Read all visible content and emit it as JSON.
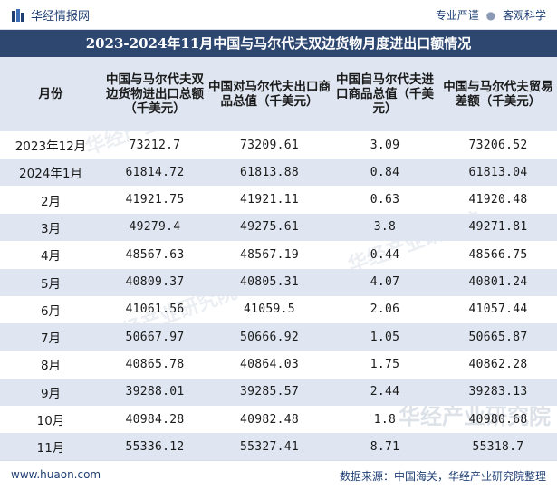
{
  "header": {
    "brand": "华经情报网",
    "slogan_left": "专业严谨",
    "slogan_sep": "●",
    "slogan_right": "客观科学"
  },
  "title": "2023-2024年11月中国与马尔代夫双边货物月度进出口额情况",
  "table": {
    "columns": [
      "月份",
      "中国与马尔代夫双边货物进出口总额（千美元）",
      "中国对马尔代夫出口商品总值（千美元）",
      "中国自马尔代夫进口商品总值（千美元）",
      "中国与马尔代夫贸易差额（千美元）"
    ],
    "rows": [
      [
        "2023年12月",
        "73212.7",
        "73209.61",
        "3.09",
        "73206.52"
      ],
      [
        "2024年1月",
        "61814.72",
        "61813.88",
        "0.84",
        "61813.04"
      ],
      [
        "2月",
        "41921.75",
        "41921.11",
        "0.63",
        "41920.48"
      ],
      [
        "3月",
        "49279.4",
        "49275.61",
        "3.8",
        "49271.81"
      ],
      [
        "4月",
        "48567.63",
        "48567.19",
        "0.44",
        "48566.75"
      ],
      [
        "5月",
        "40809.37",
        "40805.31",
        "4.07",
        "40801.24"
      ],
      [
        "6月",
        "41061.56",
        "41059.5",
        "2.06",
        "41057.44"
      ],
      [
        "7月",
        "50667.97",
        "50666.92",
        "1.05",
        "50665.87"
      ],
      [
        "8月",
        "40865.78",
        "40864.03",
        "1.75",
        "40862.28"
      ],
      [
        "9月",
        "39288.01",
        "39285.57",
        "2.44",
        "39283.13"
      ],
      [
        "10月",
        "40984.28",
        "40982.48",
        "1.8",
        "40980.68"
      ],
      [
        "11月",
        "55336.12",
        "55327.41",
        "8.71",
        "55318.7"
      ]
    ]
  },
  "watermark_text": "华经产业研究院",
  "footer": {
    "site": "www.huaon.com",
    "source": "数据来源：中国海关，华经产业研究院整理"
  },
  "colors": {
    "title_bg": "#2e4771",
    "stripe": "#dfe6f2",
    "brand": "#1f3f73"
  }
}
